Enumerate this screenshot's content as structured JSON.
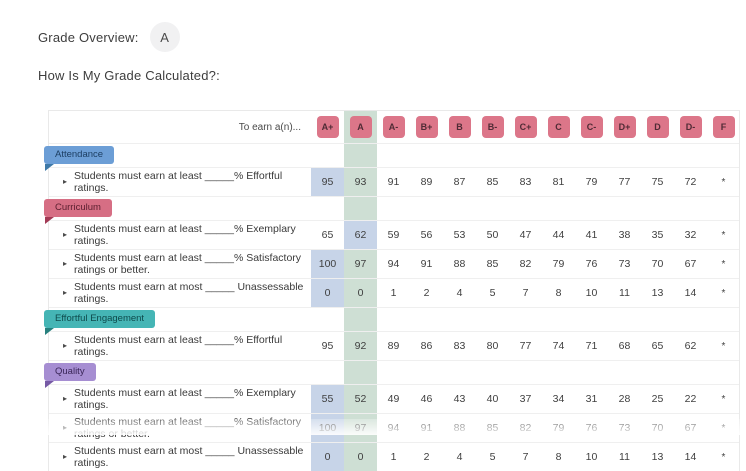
{
  "page": {
    "grade_overview_label": "Grade Overview:",
    "overall_grade": "A",
    "subtitle": "How Is My Grade Calculated?:"
  },
  "table": {
    "corner_label": "To earn a(n)...",
    "grade_columns": [
      "A+",
      "A",
      "A-",
      "B+",
      "B",
      "B-",
      "C+",
      "C",
      "C-",
      "D+",
      "D",
      "D-",
      "F"
    ],
    "highlighted_column": "A",
    "colors": {
      "badge_bg": "#dc7689",
      "badge_text": "#4f2b35",
      "highlight_column_bg": "#cedfd4",
      "achieved_cell_bg": "#c7d4e8"
    },
    "sections": [
      {
        "name": "Attendance",
        "ribbon_bg": "#6c9ed6",
        "ribbon_fold": "#3e79a8",
        "ribbon_text": "#1d3f63",
        "rows": [
          {
            "label": "Students must earn at least _____% Effortful ratings.",
            "values": [
              "95",
              "93",
              "91",
              "89",
              "87",
              "85",
              "83",
              "81",
              "79",
              "77",
              "75",
              "72",
              "*"
            ],
            "achieved_index": 0
          }
        ]
      },
      {
        "name": "Curriculum",
        "ribbon_bg": "#d66e84",
        "ribbon_fold": "#a23a55",
        "ribbon_text": "#5c2030",
        "rows": [
          {
            "label": "Students must earn at least _____% Exemplary ratings.",
            "values": [
              "65",
              "62",
              "59",
              "56",
              "53",
              "50",
              "47",
              "44",
              "41",
              "38",
              "35",
              "32",
              "*"
            ],
            "achieved_index": 1
          },
          {
            "label": "Students must earn at least _____% Satisfactory ratings or better.",
            "values": [
              "100",
              "97",
              "94",
              "91",
              "88",
              "85",
              "82",
              "79",
              "76",
              "73",
              "70",
              "67",
              "*"
            ],
            "achieved_index": 0
          },
          {
            "label": "Students must earn at most _____ Unassessable ratings.",
            "values": [
              "0",
              "0",
              "1",
              "2",
              "4",
              "5",
              "7",
              "8",
              "10",
              "11",
              "13",
              "14",
              "*"
            ],
            "achieved_index": 0
          }
        ]
      },
      {
        "name": "Effortful Engagement",
        "ribbon_bg": "#45b5b5",
        "ribbon_fold": "#27807e",
        "ribbon_text": "#0e4a4c",
        "rows": [
          {
            "label": "Students must earn at least _____% Effortful ratings.",
            "values": [
              "95",
              "92",
              "89",
              "86",
              "83",
              "80",
              "77",
              "74",
              "71",
              "68",
              "65",
              "62",
              "*"
            ],
            "achieved_index": -1
          }
        ]
      },
      {
        "name": "Quality",
        "ribbon_bg": "#a68ed2",
        "ribbon_fold": "#7659a5",
        "ribbon_text": "#3a2658",
        "rows": [
          {
            "label": "Students must earn at least _____% Exemplary ratings.",
            "values": [
              "55",
              "52",
              "49",
              "46",
              "43",
              "40",
              "37",
              "34",
              "31",
              "28",
              "25",
              "22",
              "*"
            ],
            "achieved_index": 0
          },
          {
            "label": "Students must earn at least _____% Satisfactory ratings or better.",
            "values": [
              "100",
              "97",
              "94",
              "91",
              "88",
              "85",
              "82",
              "79",
              "76",
              "73",
              "70",
              "67",
              "*"
            ],
            "achieved_index": 0
          },
          {
            "label": "Students must earn at most _____ Unassessable ratings.",
            "values": [
              "0",
              "0",
              "1",
              "2",
              "4",
              "5",
              "7",
              "8",
              "10",
              "11",
              "13",
              "14",
              "*"
            ],
            "achieved_index": 0
          }
        ]
      }
    ]
  }
}
